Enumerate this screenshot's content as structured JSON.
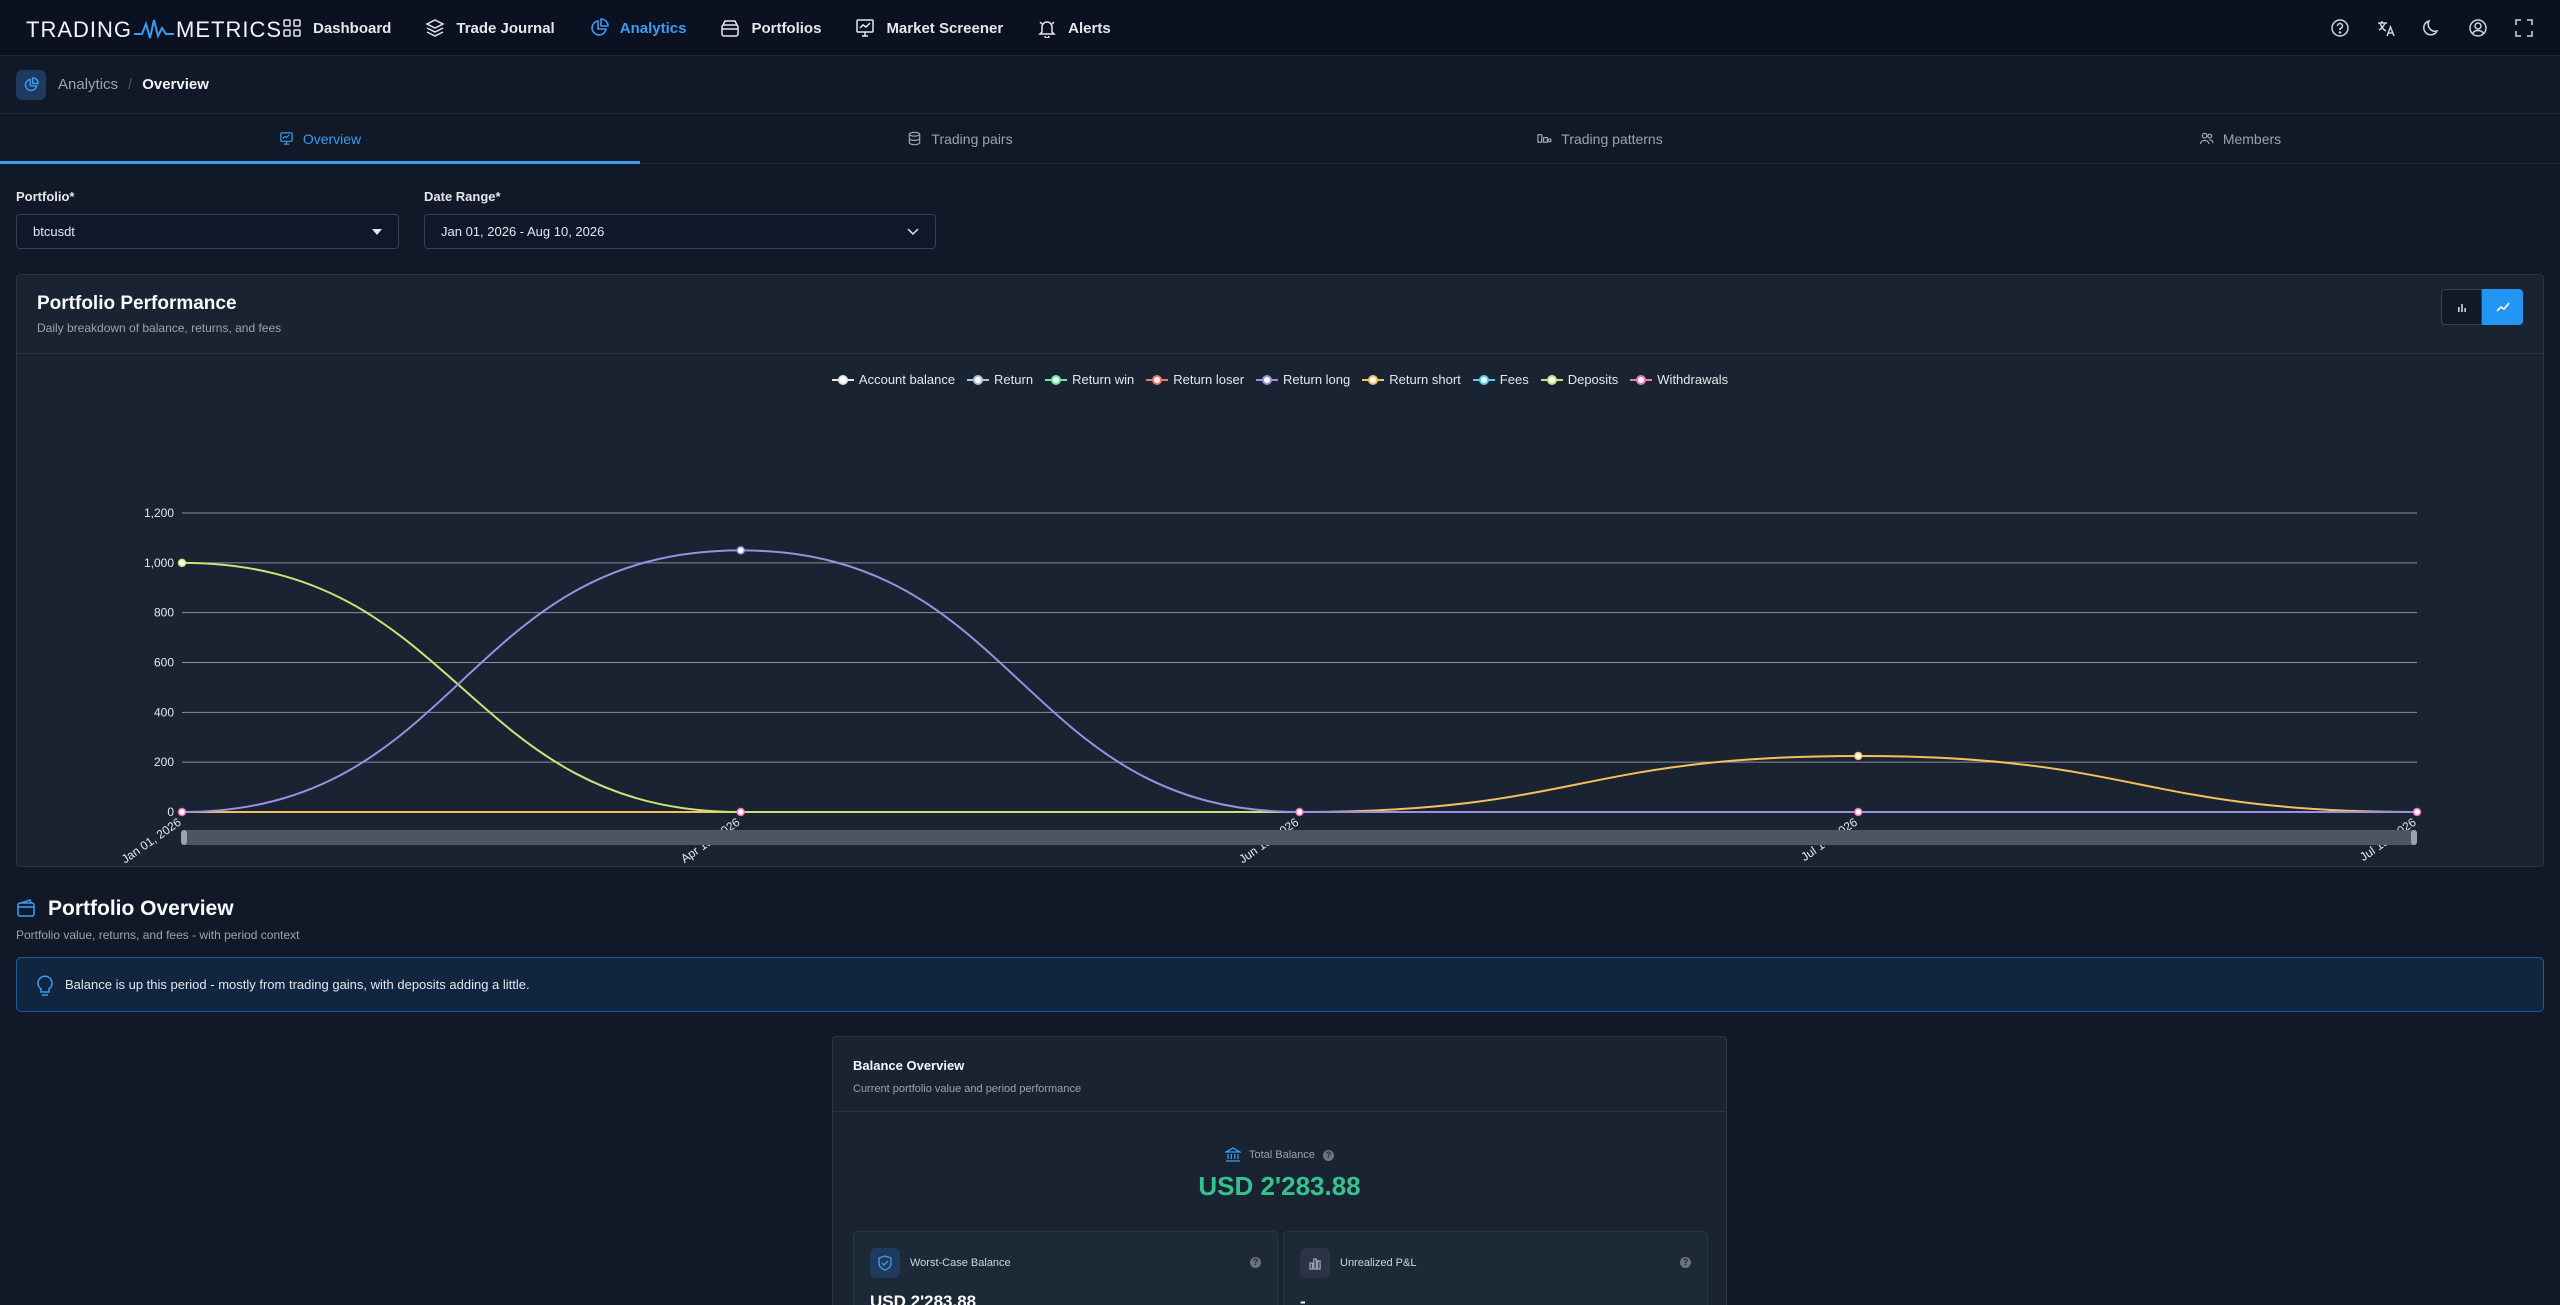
{
  "nav": {
    "logo_left": "TRADING",
    "logo_right": "METRICS",
    "items": [
      {
        "label": "Dashboard",
        "icon": "grid-icon"
      },
      {
        "label": "Trade Journal",
        "icon": "layers-icon"
      },
      {
        "label": "Analytics",
        "icon": "pie-chart-icon",
        "active": true
      },
      {
        "label": "Portfolios",
        "icon": "wallet-icon"
      },
      {
        "label": "Market Screener",
        "icon": "screener-icon"
      },
      {
        "label": "Alerts",
        "icon": "bell-icon"
      }
    ],
    "right_icons": [
      "help-icon",
      "translate-icon",
      "moon-icon",
      "user-icon",
      "fullscreen-icon"
    ]
  },
  "breadcrumb": {
    "parent": "Analytics",
    "separator": "/",
    "current": "Overview"
  },
  "tabs": [
    {
      "label": "Overview",
      "icon": "monitor-icon",
      "active": true
    },
    {
      "label": "Trading pairs",
      "icon": "database-icon"
    },
    {
      "label": "Trading patterns",
      "icon": "pattern-icon"
    },
    {
      "label": "Members",
      "icon": "users-icon"
    }
  ],
  "filters": {
    "portfolio_label": "Portfolio*",
    "portfolio_value": "btcusdt",
    "date_label": "Date Range*",
    "date_value": "Jan 01, 2026 - Aug 10, 2026"
  },
  "performance": {
    "title": "Portfolio Performance",
    "subtitle": "Daily breakdown of balance, returns, and fees"
  },
  "chart_data": {
    "type": "line",
    "x": [
      "Jan 01, 2026",
      "Apr 13, 2026",
      "Jun 13, 2026",
      "Jul 14, 2026",
      "Jul 15, 2026"
    ],
    "ylim": [
      0,
      1200
    ],
    "yticks": [
      0,
      200,
      400,
      600,
      800,
      1000,
      1200
    ],
    "yticks_labels": [
      "0",
      "200",
      "400",
      "600",
      "800",
      "1,000",
      "1,200"
    ],
    "grid": true,
    "legend_position": "top-center",
    "series": [
      {
        "name": "Account balance",
        "color": "#e5e7eb",
        "values": [
          0,
          0,
          0,
          0,
          0
        ]
      },
      {
        "name": "Return",
        "color": "#b0c4de",
        "values": [
          0,
          0,
          0,
          0,
          0
        ]
      },
      {
        "name": "Return win",
        "color": "#6ee7a0",
        "values": [
          0,
          0,
          0,
          0,
          0
        ]
      },
      {
        "name": "Return loser",
        "color": "#f87171",
        "values": [
          0,
          0,
          0,
          0,
          0
        ]
      },
      {
        "name": "Return long",
        "color": "#9b8fe0",
        "values": [
          0,
          1050,
          0,
          0,
          0
        ]
      },
      {
        "name": "Return short",
        "color": "#f5c15c",
        "values": [
          0,
          0,
          0,
          225,
          0
        ]
      },
      {
        "name": "Fees",
        "color": "#4fd1e0",
        "values": [
          0,
          0,
          0,
          0,
          0
        ]
      },
      {
        "name": "Deposits",
        "color": "#c5e57a",
        "values": [
          1000,
          0,
          0,
          0,
          0
        ]
      },
      {
        "name": "Withdrawals",
        "color": "#f472b6",
        "values": [
          0,
          0,
          0,
          0,
          0
        ]
      }
    ]
  },
  "overview": {
    "title": "Portfolio Overview",
    "subtitle": "Portfolio value, returns, and fees - with period context",
    "banner": "Balance is up this period - mostly from trading gains, with deposits adding a little."
  },
  "balance": {
    "title": "Balance Overview",
    "subtitle": "Current portfolio value and period performance",
    "total_label": "Total Balance",
    "total_value": "USD 2'283.88",
    "worst_label": "Worst-Case Balance",
    "worst_value": "USD 2'283.88",
    "unreal_label": "Unrealized P&L",
    "unreal_value": "-",
    "accent_green": "#34c38f"
  }
}
